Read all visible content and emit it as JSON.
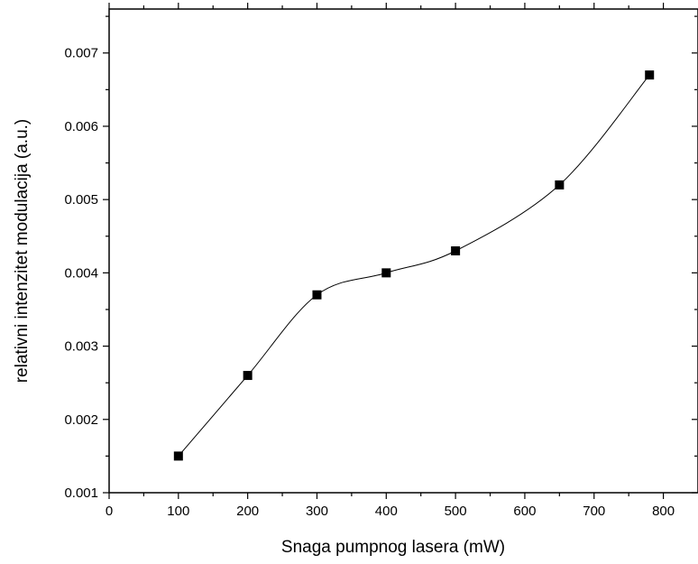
{
  "chart_data": {
    "type": "scatter",
    "title": "",
    "xlabel": "Snaga pumpnog lasera (mW)",
    "ylabel": "relativni intenzitet modulacija (a.u.)",
    "xlim": [
      0,
      850
    ],
    "ylim": [
      0.001,
      0.0076
    ],
    "xticks": [
      0,
      100,
      200,
      300,
      400,
      500,
      600,
      700,
      800
    ],
    "xtick_labels": [
      "0",
      "100",
      "200",
      "300",
      "400",
      "500",
      "600",
      "700",
      "800"
    ],
    "yticks": [
      0.001,
      0.002,
      0.003,
      0.004,
      0.005,
      0.006,
      0.007
    ],
    "ytick_labels": [
      "0.001",
      "0.002",
      "0.003",
      "0.004",
      "0.005",
      "0.006",
      "0.007"
    ],
    "grid": false,
    "marker": "square",
    "line": "smooth spline through points",
    "colors": {
      "marker": "#000000",
      "line": "#000000",
      "frame": "#000000"
    },
    "series": [
      {
        "x": [
          100,
          200,
          300,
          400,
          500,
          650,
          780
        ],
        "y": [
          0.0015,
          0.0026,
          0.0037,
          0.004,
          0.0043,
          0.0052,
          0.0067
        ]
      }
    ]
  }
}
